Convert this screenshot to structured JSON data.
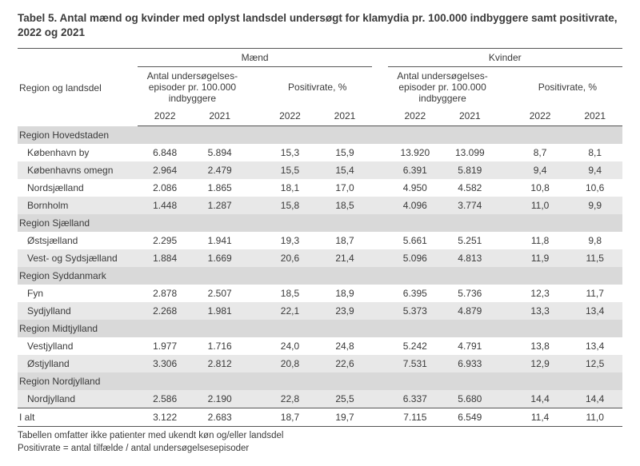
{
  "title": "Tabel 5.  Antal mænd og kvinder med oplyst landsdel undersøgt for klamydia pr. 100.000 indbyggere samt positivrate, 2022 og 2021",
  "headers": {
    "region_label": "Region og landsdel",
    "gender1": "Mænd",
    "gender2": "Kvinder",
    "metric1": "Antal undersøgelses-episoder pr. 100.000 indbyggere",
    "metric2": "Positivrate, %",
    "y2022": "2022",
    "y2021": "2021"
  },
  "sections": [
    {
      "name": "Region Hovedstaden",
      "rows": [
        {
          "label": "København by",
          "alt": false,
          "m_ep22": "6.848",
          "m_ep21": "5.894",
          "m_pr22": "15,3",
          "m_pr21": "15,9",
          "k_ep22": "13.920",
          "k_ep21": "13.099",
          "k_pr22": "8,7",
          "k_pr21": "8,1"
        },
        {
          "label": "Københavns omegn",
          "alt": true,
          "m_ep22": "2.964",
          "m_ep21": "2.479",
          "m_pr22": "15,5",
          "m_pr21": "15,4",
          "k_ep22": "6.391",
          "k_ep21": "5.819",
          "k_pr22": "9,4",
          "k_pr21": "9,4"
        },
        {
          "label": "Nordsjælland",
          "alt": false,
          "m_ep22": "2.086",
          "m_ep21": "1.865",
          "m_pr22": "18,1",
          "m_pr21": "17,0",
          "k_ep22": "4.950",
          "k_ep21": "4.582",
          "k_pr22": "10,8",
          "k_pr21": "10,6"
        },
        {
          "label": "Bornholm",
          "alt": true,
          "m_ep22": "1.448",
          "m_ep21": "1.287",
          "m_pr22": "15,8",
          "m_pr21": "18,5",
          "k_ep22": "4.096",
          "k_ep21": "3.774",
          "k_pr22": "11,0",
          "k_pr21": "9,9"
        }
      ]
    },
    {
      "name": "Region Sjælland",
      "rows": [
        {
          "label": "Østsjælland",
          "alt": false,
          "m_ep22": "2.295",
          "m_ep21": "1.941",
          "m_pr22": "19,3",
          "m_pr21": "18,7",
          "k_ep22": "5.661",
          "k_ep21": "5.251",
          "k_pr22": "11,8",
          "k_pr21": "9,8"
        },
        {
          "label": "Vest- og Sydsjælland",
          "alt": true,
          "m_ep22": "1.884",
          "m_ep21": "1.669",
          "m_pr22": "20,6",
          "m_pr21": "21,4",
          "k_ep22": "5.096",
          "k_ep21": "4.813",
          "k_pr22": "11,9",
          "k_pr21": "11,5"
        }
      ]
    },
    {
      "name": "Region Syddanmark",
      "rows": [
        {
          "label": "Fyn",
          "alt": false,
          "m_ep22": "2.878",
          "m_ep21": "2.507",
          "m_pr22": "18,5",
          "m_pr21": "18,9",
          "k_ep22": "6.395",
          "k_ep21": "5.736",
          "k_pr22": "12,3",
          "k_pr21": "11,7"
        },
        {
          "label": "Sydjylland",
          "alt": true,
          "m_ep22": "2.268",
          "m_ep21": "1.981",
          "m_pr22": "22,1",
          "m_pr21": "23,9",
          "k_ep22": "5.373",
          "k_ep21": "4.879",
          "k_pr22": "13,3",
          "k_pr21": "13,4"
        }
      ]
    },
    {
      "name": "Region Midtjylland",
      "rows": [
        {
          "label": "Vestjylland",
          "alt": false,
          "m_ep22": "1.977",
          "m_ep21": "1.716",
          "m_pr22": "24,0",
          "m_pr21": "24,8",
          "k_ep22": "5.242",
          "k_ep21": "4.791",
          "k_pr22": "13,8",
          "k_pr21": "13,4"
        },
        {
          "label": "Østjylland",
          "alt": true,
          "m_ep22": "3.306",
          "m_ep21": "2.812",
          "m_pr22": "20,8",
          "m_pr21": "22,6",
          "k_ep22": "7.531",
          "k_ep21": "6.933",
          "k_pr22": "12,9",
          "k_pr21": "12,5"
        }
      ]
    },
    {
      "name": "Region Nordjylland",
      "rows": [
        {
          "label": "Nordjylland",
          "alt": true,
          "m_ep22": "2.586",
          "m_ep21": "2.190",
          "m_pr22": "22,8",
          "m_pr21": "25,5",
          "k_ep22": "6.337",
          "k_ep21": "5.680",
          "k_pr22": "14,4",
          "k_pr21": "14,4"
        }
      ]
    }
  ],
  "total": {
    "label": "I alt",
    "m_ep22": "3.122",
    "m_ep21": "2.683",
    "m_pr22": "18,7",
    "m_pr21": "19,7",
    "k_ep22": "7.115",
    "k_ep21": "6.549",
    "k_pr22": "11,4",
    "k_pr21": "11,0"
  },
  "notes": {
    "line1": "Tabellen omfatter ikke patienter med ukendt køn og/eller landsdel",
    "line2": "Positivrate = antal tilfælde / antal undersøgelsesepisoder"
  },
  "colors": {
    "section_bg": "#d9d9d9",
    "alt_bg": "#e8e8e8",
    "text": "#3a3a3a",
    "border": "#555555"
  }
}
